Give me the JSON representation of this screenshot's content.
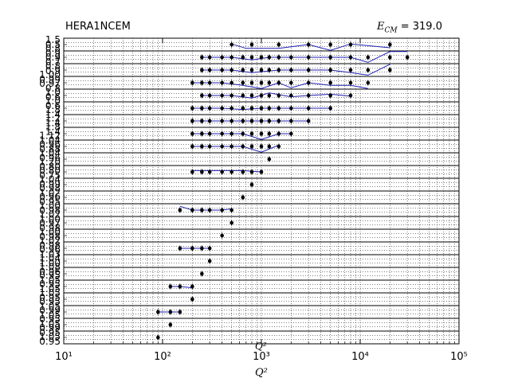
{
  "header": {
    "left": "HERA1NCEM",
    "right_symbol": "E",
    "right_subscript": "CM",
    "right_value": " = 319.0"
  },
  "chart_data": {
    "type": "scatter",
    "title": "HERA1NCEM",
    "annotation": "E_CM = 319.0",
    "xlabel": "Q²",
    "xscale": "log",
    "xlim": [
      10,
      100000
    ],
    "x_ticks": [
      "10¹",
      "10²",
      "10³",
      "10⁴",
      "10⁵"
    ],
    "grid": true,
    "panels_note": "stacked ratio panels, data points with error bars and a blue theory curve per panel",
    "series": [
      {
        "name": "",
        "points": [
          [
            500,
            0.5
          ],
          [
            800,
            0.5
          ],
          [
            1500,
            0.5
          ],
          [
            3000,
            0.5
          ],
          [
            5000,
            0.5
          ],
          [
            8000,
            0.5
          ],
          [
            20000,
            0.5
          ]
        ]
      },
      {
        "name": "",
        "points": [
          [
            250,
            0.5
          ],
          [
            300,
            0.5
          ],
          [
            400,
            0.5
          ],
          [
            500,
            0.5
          ],
          [
            650,
            0.5
          ],
          [
            800,
            0.5
          ],
          [
            1000,
            0.5
          ],
          [
            1200,
            0.5
          ],
          [
            1500,
            0.5
          ],
          [
            2000,
            0.5
          ],
          [
            3000,
            0.5
          ],
          [
            5000,
            0.5
          ],
          [
            8000,
            0.5
          ],
          [
            12000,
            0.5
          ],
          [
            20000,
            0.5
          ],
          [
            30000,
            0.5
          ]
        ]
      },
      {
        "name": "",
        "points": [
          [
            250,
            0.5
          ],
          [
            300,
            0.5
          ],
          [
            400,
            0.5
          ],
          [
            500,
            0.5
          ],
          [
            650,
            0.5
          ],
          [
            800,
            0.5
          ],
          [
            1000,
            0.5
          ],
          [
            1200,
            0.5
          ],
          [
            1500,
            0.5
          ],
          [
            2000,
            0.5
          ],
          [
            3000,
            0.5
          ],
          [
            5000,
            0.5
          ],
          [
            8000,
            0.5
          ],
          [
            12000,
            0.5
          ],
          [
            20000,
            0.5
          ]
        ]
      },
      {
        "name": "",
        "points": [
          [
            200,
            0.5
          ],
          [
            250,
            0.5
          ],
          [
            300,
            0.5
          ],
          [
            400,
            0.5
          ],
          [
            500,
            0.5
          ],
          [
            650,
            0.5
          ],
          [
            800,
            0.5
          ],
          [
            1000,
            0.5
          ],
          [
            1200,
            0.5
          ],
          [
            1500,
            0.5
          ],
          [
            2000,
            0.5
          ],
          [
            3000,
            0.5
          ],
          [
            5000,
            0.5
          ],
          [
            8000,
            0.5
          ],
          [
            12000,
            0.5
          ]
        ]
      },
      {
        "name": "",
        "points": [
          [
            250,
            0.5
          ],
          [
            300,
            0.5
          ],
          [
            400,
            0.5
          ],
          [
            500,
            0.5
          ],
          [
            650,
            0.5
          ],
          [
            800,
            0.5
          ],
          [
            1000,
            0.5
          ],
          [
            1200,
            0.5
          ],
          [
            1500,
            0.5
          ],
          [
            2000,
            0.5
          ],
          [
            3000,
            0.5
          ],
          [
            5000,
            0.5
          ],
          [
            8000,
            0.5
          ]
        ]
      },
      {
        "name": "",
        "points": [
          [
            200,
            0.5
          ],
          [
            250,
            0.5
          ],
          [
            300,
            0.5
          ],
          [
            400,
            0.5
          ],
          [
            500,
            0.5
          ],
          [
            650,
            0.5
          ],
          [
            800,
            0.5
          ],
          [
            1000,
            0.5
          ],
          [
            1200,
            0.5
          ],
          [
            1500,
            0.5
          ],
          [
            2000,
            0.5
          ],
          [
            3000,
            0.5
          ],
          [
            5000,
            0.5
          ]
        ]
      },
      {
        "name": "",
        "points": [
          [
            200,
            0.5
          ],
          [
            250,
            0.5
          ],
          [
            300,
            0.5
          ],
          [
            400,
            0.5
          ],
          [
            500,
            0.5
          ],
          [
            650,
            0.5
          ],
          [
            800,
            0.5
          ],
          [
            1000,
            0.5
          ],
          [
            1200,
            0.5
          ],
          [
            1500,
            0.5
          ],
          [
            2000,
            0.5
          ],
          [
            3000,
            0.5
          ]
        ]
      },
      {
        "name": "",
        "points": [
          [
            200,
            0.5
          ],
          [
            250,
            0.5
          ],
          [
            300,
            0.5
          ],
          [
            400,
            0.5
          ],
          [
            500,
            0.5
          ],
          [
            650,
            0.5
          ],
          [
            800,
            0.5
          ],
          [
            1000,
            0.5
          ],
          [
            1200,
            0.5
          ],
          [
            1500,
            0.5
          ],
          [
            2000,
            0.5
          ]
        ]
      },
      {
        "name": "",
        "points": [
          [
            200,
            0.5
          ],
          [
            250,
            0.5
          ],
          [
            300,
            0.5
          ],
          [
            400,
            0.5
          ],
          [
            500,
            0.5
          ],
          [
            650,
            0.5
          ],
          [
            800,
            0.5
          ],
          [
            1000,
            0.5
          ],
          [
            1200,
            0.5
          ],
          [
            1500,
            0.5
          ]
        ]
      },
      {
        "name": "",
        "points": [
          [
            1200,
            0.5
          ]
        ]
      },
      {
        "name": "",
        "points": [
          [
            200,
            0.5
          ],
          [
            250,
            0.5
          ],
          [
            300,
            0.5
          ],
          [
            400,
            0.5
          ],
          [
            500,
            0.5
          ],
          [
            650,
            0.5
          ],
          [
            800,
            0.5
          ],
          [
            1000,
            0.5
          ]
        ]
      },
      {
        "name": "",
        "points": [
          [
            800,
            0.5
          ]
        ]
      },
      {
        "name": "",
        "points": [
          [
            650,
            0.5
          ]
        ]
      },
      {
        "name": "",
        "points": [
          [
            150,
            0.5
          ],
          [
            200,
            0.5
          ],
          [
            250,
            0.5
          ],
          [
            300,
            0.5
          ],
          [
            400,
            0.5
          ],
          [
            500,
            0.5
          ]
        ]
      },
      {
        "name": "",
        "points": [
          [
            500,
            0.5
          ]
        ]
      },
      {
        "name": "",
        "points": [
          [
            400,
            0.5
          ]
        ]
      },
      {
        "name": "",
        "points": [
          [
            150,
            0.5
          ],
          [
            200,
            0.5
          ],
          [
            250,
            0.5
          ],
          [
            300,
            0.5
          ]
        ]
      },
      {
        "name": "",
        "points": [
          [
            300,
            0.5
          ]
        ]
      },
      {
        "name": "",
        "points": [
          [
            250,
            0.5
          ]
        ]
      },
      {
        "name": "",
        "points": [
          [
            120,
            0.5
          ],
          [
            150,
            0.5
          ],
          [
            200,
            0.5
          ]
        ]
      },
      {
        "name": "",
        "points": [
          [
            200,
            0.5
          ]
        ]
      },
      {
        "name": "",
        "points": [
          [
            90,
            0.5
          ],
          [
            120,
            0.5
          ],
          [
            150,
            0.5
          ]
        ]
      },
      {
        "name": "",
        "points": [
          [
            120,
            0.5
          ]
        ]
      },
      {
        "name": "",
        "points": [
          [
            90,
            0.5
          ]
        ]
      }
    ],
    "theory_curves": [
      [
        [
          500,
          0.55
        ],
        [
          700,
          0.2
        ],
        [
          1500,
          0.2
        ],
        [
          3000,
          0.5
        ],
        [
          5000,
          0.05
        ],
        [
          8000,
          0.55
        ],
        [
          20000,
          0.25
        ]
      ],
      [
        [
          250,
          0.5
        ],
        [
          500,
          0.5
        ],
        [
          800,
          0.3
        ],
        [
          1200,
          0.5
        ],
        [
          2000,
          0.5
        ],
        [
          5000,
          0.5
        ],
        [
          8000,
          0.5
        ],
        [
          12000,
          0.1
        ],
        [
          20000,
          0.95
        ],
        [
          30000,
          0.95
        ]
      ],
      [
        [
          250,
          0.5
        ],
        [
          500,
          0.5
        ],
        [
          800,
          0.3
        ],
        [
          1500,
          0.5
        ],
        [
          3000,
          0.5
        ],
        [
          5000,
          0.5
        ],
        [
          8000,
          0.3
        ],
        [
          12000,
          0.1
        ],
        [
          20000,
          0.95
        ]
      ],
      [
        [
          200,
          0.5
        ],
        [
          400,
          0.5
        ],
        [
          650,
          0.3
        ],
        [
          1000,
          0.05
        ],
        [
          1500,
          0.5
        ],
        [
          2000,
          0.1
        ],
        [
          3000,
          0.5
        ],
        [
          5000,
          0.3
        ],
        [
          8000,
          0.3
        ],
        [
          12000,
          0.05
        ]
      ],
      [
        [
          250,
          0.5
        ],
        [
          500,
          0.5
        ],
        [
          800,
          0.3
        ],
        [
          1200,
          0.7
        ],
        [
          2000,
          0.4
        ],
        [
          3000,
          0.5
        ],
        [
          5000,
          0.6
        ],
        [
          8000,
          0.45
        ]
      ],
      [
        [
          200,
          0.5
        ],
        [
          400,
          0.5
        ],
        [
          650,
          0.4
        ],
        [
          1000,
          0.5
        ],
        [
          2000,
          0.5
        ],
        [
          3000,
          0.5
        ],
        [
          5000,
          0.5
        ]
      ],
      [
        [
          200,
          0.5
        ],
        [
          400,
          0.5
        ],
        [
          650,
          0.5
        ],
        [
          1000,
          0.5
        ],
        [
          2000,
          0.5
        ],
        [
          3000,
          0.5
        ]
      ],
      [
        [
          200,
          0.5
        ],
        [
          400,
          0.5
        ],
        [
          650,
          0.5
        ],
        [
          1000,
          0.05
        ],
        [
          1500,
          0.5
        ],
        [
          2000,
          0.5
        ]
      ],
      [
        [
          200,
          0.5
        ],
        [
          400,
          0.5
        ],
        [
          650,
          0.5
        ],
        [
          1000,
          0.05
        ],
        [
          1500,
          0.6
        ]
      ],
      [],
      [
        [
          200,
          0.6
        ],
        [
          400,
          0.6
        ],
        [
          650,
          0.6
        ],
        [
          1000,
          0.5
        ]
      ],
      [],
      [],
      [
        [
          150,
          0.8
        ],
        [
          200,
          0.5
        ],
        [
          400,
          0.5
        ],
        [
          500,
          0.6
        ]
      ],
      [],
      [],
      [
        [
          150,
          0.5
        ],
        [
          200,
          0.5
        ],
        [
          300,
          0.5
        ]
      ],
      [],
      [],
      [
        [
          120,
          0.5
        ],
        [
          150,
          0.5
        ],
        [
          200,
          0.4
        ]
      ],
      [],
      [
        [
          90,
          0.5
        ],
        [
          120,
          0.5
        ],
        [
          150,
          0.5
        ]
      ],
      [],
      []
    ],
    "panel_tick_labels": [
      [
        "1.5",
        "0.5"
      ],
      [
        "0.8",
        "0.9"
      ],
      [
        "0.9",
        "0.7"
      ],
      [
        "0.8",
        "0.9"
      ],
      [
        "1.00",
        "0.99"
      ],
      [
        "0.97",
        "0.8"
      ],
      [
        "1.0",
        "0.6"
      ],
      [
        "1.0",
        "0.6"
      ],
      [
        "1.8",
        "1.4"
      ],
      [
        "1.2",
        "1.4"
      ],
      [
        "1.8",
        "1.4"
      ],
      [
        "1.12",
        "1.04"
      ],
      [
        "0.96",
        "0.88"
      ],
      [
        "1.04",
        "0.96"
      ],
      [
        "1.20",
        "0.80"
      ],
      [
        "0.80",
        "0.75"
      ],
      [
        "1.04",
        "0.99"
      ],
      [
        "0.98",
        "1.02"
      ],
      [
        "0.96",
        "0.95"
      ],
      [
        "1.00",
        "0.98"
      ],
      [
        "1.02",
        "1.00"
      ],
      [
        "0.97",
        "0.98"
      ],
      [
        "1.00",
        "0.98"
      ],
      [
        "1.02",
        "0.98"
      ],
      [
        "0.96",
        "1.03"
      ],
      [
        "1.04",
        "1.00"
      ],
      [
        "1.08",
        "0.96"
      ],
      [
        "0.95",
        "1.05"
      ],
      [
        "0.95",
        "1.05"
      ],
      [
        "1.05",
        "0.95"
      ],
      [
        "0.95",
        "1.05"
      ],
      [
        "0.99",
        "1.05"
      ],
      [
        "0.95",
        "1.05"
      ],
      [
        "0.99",
        "0.95"
      ],
      [
        "1.05",
        "0.95"
      ]
    ]
  }
}
